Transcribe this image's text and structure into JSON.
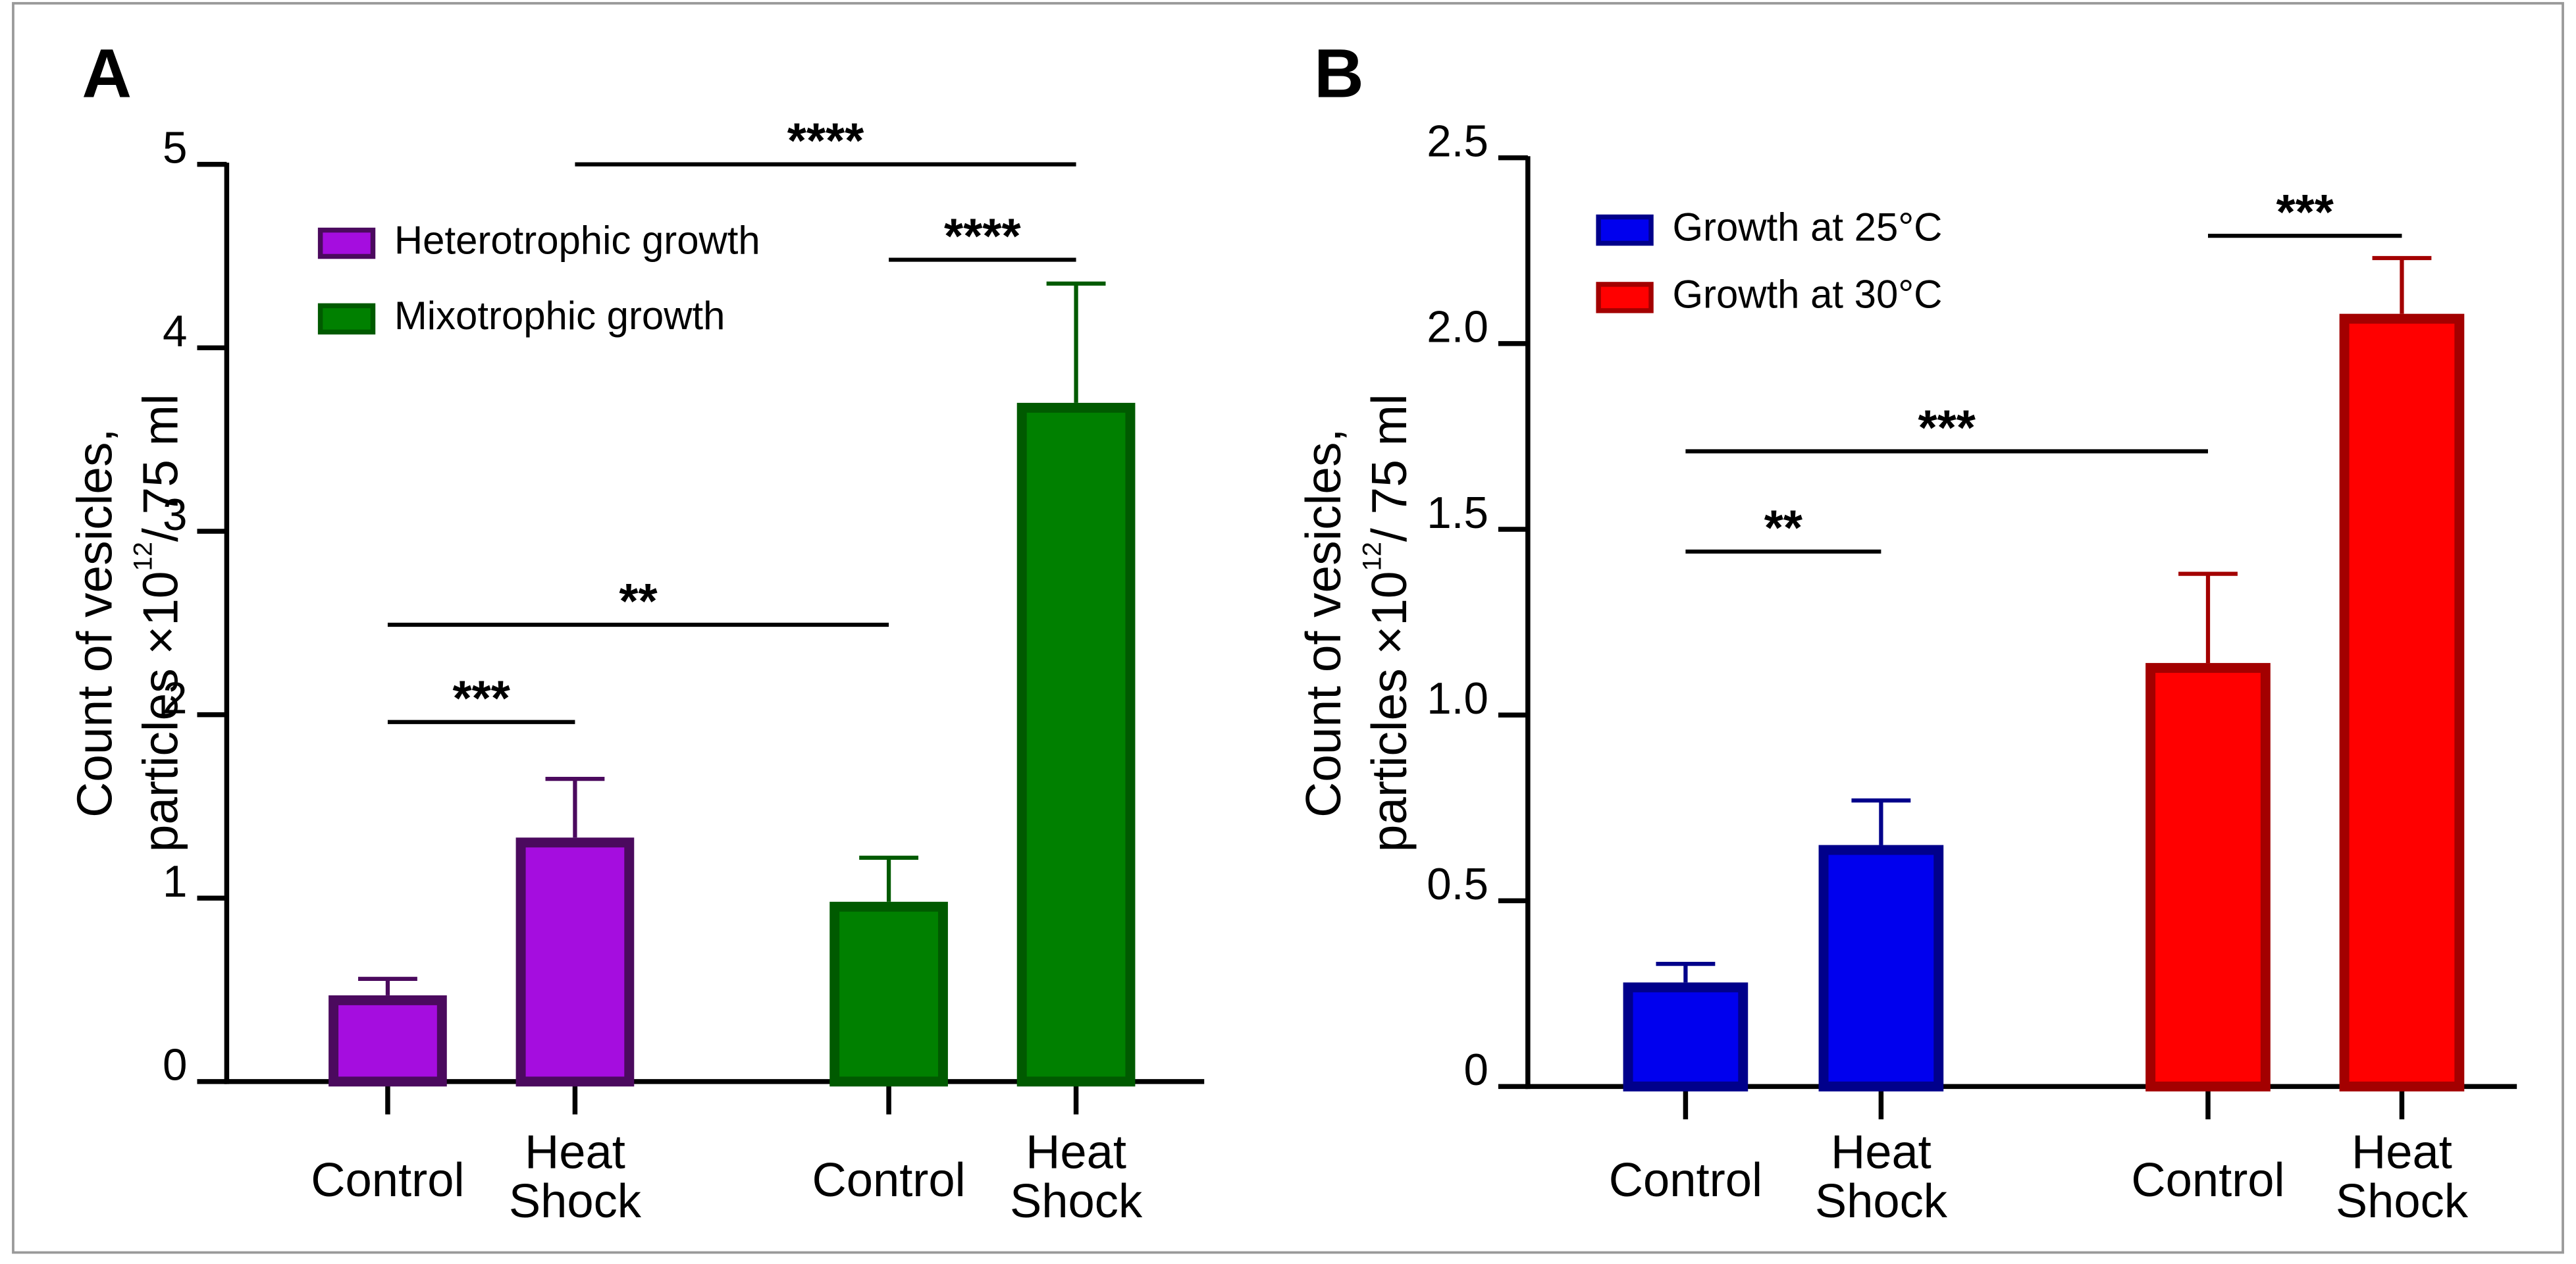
{
  "chart_data": [
    {
      "type": "bar",
      "panel_label": "A",
      "ylabel": {
        "line1": "Count of vesicles,",
        "line2": "particles ×10",
        "sup": "12",
        "line2_end": "/ 75 ml"
      },
      "categories": [
        [
          "Control"
        ],
        [
          "Heat",
          "Shock"
        ],
        [
          "Control"
        ],
        [
          "Heat",
          "Shock"
        ]
      ],
      "series": [
        {
          "name": "Heterotrophic growth",
          "color": "#a50ddf",
          "edge_color": "#4b0a5e",
          "values": [
            0.47,
            1.33,
            null,
            null
          ],
          "errors": [
            0.09,
            0.32,
            null,
            null
          ]
        },
        {
          "name": "Mixotrophic growth",
          "color": "#008000",
          "edge_color": "#005a00",
          "values": [
            null,
            null,
            0.98,
            3.7
          ],
          "errors": [
            null,
            null,
            0.24,
            0.65
          ]
        }
      ],
      "ylim": [
        0,
        5
      ],
      "yticks": [
        0,
        1,
        2,
        3,
        4,
        5
      ],
      "annotations": [
        {
          "label": "***",
          "from": 0,
          "to": 1,
          "y": 1.96
        },
        {
          "label": "**",
          "from": 0,
          "to": 2,
          "y": 2.49
        },
        {
          "label": "****",
          "from": 2,
          "to": 3,
          "y": 4.48
        },
        {
          "label": "****",
          "from": 1,
          "to": 3,
          "y": 5.0
        }
      ]
    },
    {
      "type": "bar",
      "panel_label": "B",
      "ylabel": {
        "line1": "Count of vesicles,",
        "line2": "particles ×10",
        "sup": "12",
        "line2_end": "/ 75 ml"
      },
      "categories": [
        [
          "Control"
        ],
        [
          "Heat",
          "Shock"
        ],
        [
          "Control"
        ],
        [
          "Heat",
          "Shock"
        ]
      ],
      "series": [
        {
          "name": "Growth at 25°C",
          "color": "#0000ee",
          "edge_color": "#00008b",
          "values": [
            0.28,
            0.65,
            null,
            null
          ],
          "errors": [
            0.05,
            0.12,
            null,
            null
          ]
        },
        {
          "name": "Growth at 30°C",
          "color": "#ff0000",
          "edge_color": "#a30000",
          "values": [
            null,
            null,
            1.14,
            2.08
          ],
          "errors": [
            null,
            null,
            0.24,
            0.15
          ]
        }
      ],
      "ylim": [
        0,
        2.5
      ],
      "yticks": [
        0,
        0.5,
        {
          "value": 1,
          "label": "1.0"
        },
        1.5,
        {
          "value": 2,
          "label": "2.0"
        },
        2.5
      ],
      "annotations": [
        {
          "label": "**",
          "from": 0,
          "to": 1,
          "y": 1.44
        },
        {
          "label": "***",
          "from": 0,
          "to": 2,
          "y": 1.71
        },
        {
          "label": "***",
          "from": 2,
          "to": 3,
          "y": 2.29
        }
      ]
    }
  ]
}
